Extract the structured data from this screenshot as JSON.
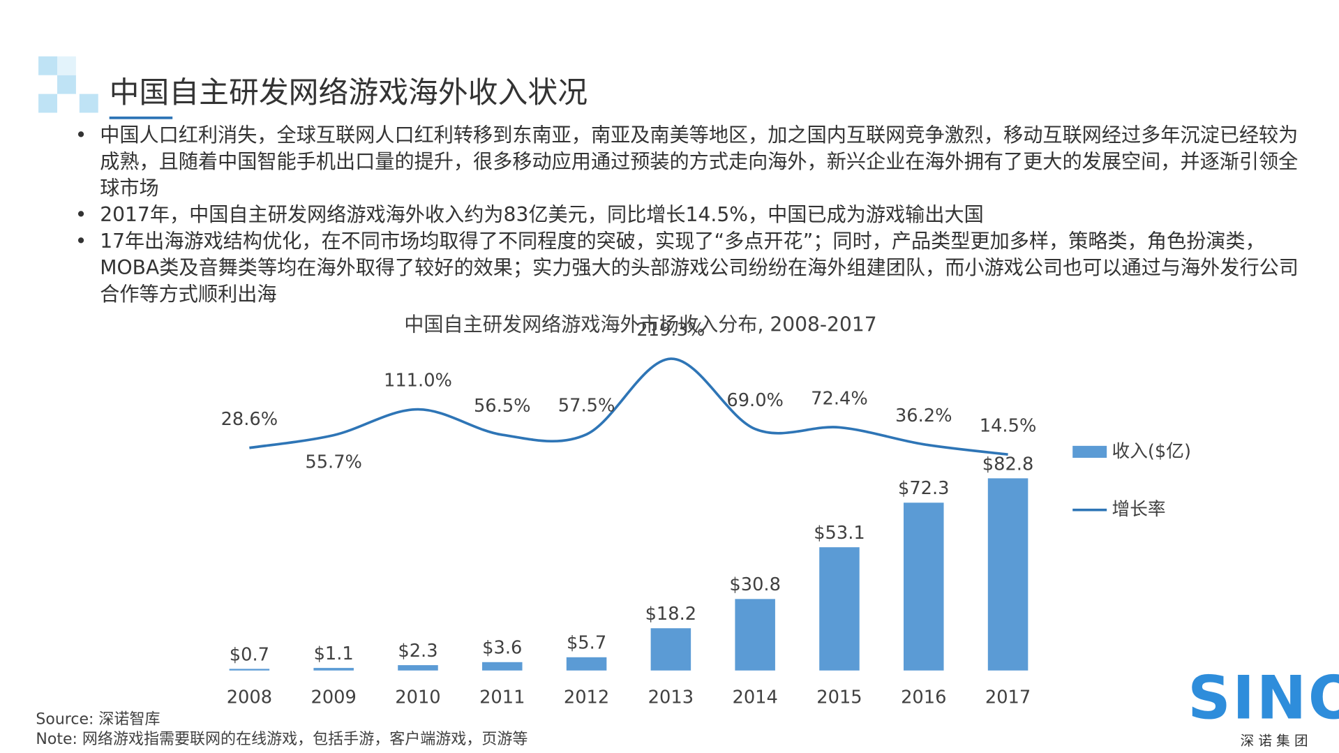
{
  "header": {
    "title": "中国自主研发网络游戏海外收入状况"
  },
  "bullets": [
    "中国人口红利消失，全球互联网人口红利转移到东南亚，南亚及南美等地区，加之国内互联网竞争激烈，移动互联网经过多年沉淀已经较为成熟，且随着中国智能手机出口量的提升，很多移动应用通过预装的方式走向海外，新兴企业在海外拥有了更大的发展空间，并逐渐引领全球市场",
    "2017年，中国自主研发网络游戏海外收入约为83亿美元，同比增长14.5%，中国已成为游戏输出大国",
    "17年出海游戏结构优化，在不同市场均取得了不同程度的突破，实现了“多点开花”；同时，产品类型更加多样，策略类，角色扮演类，MOBA类及音舞类等均在海外取得了较好的效果；实力强大的头部游戏公司纷纷在海外组建团队，而小游戏公司也可以通过与海外发行公司合作等方式顺利出海"
  ],
  "chart_data": {
    "type": "bar",
    "title": "中国自主研发网络游戏海外市场收入分布, 2008-2017",
    "categories": [
      "2008",
      "2009",
      "2010",
      "2011",
      "2012",
      "2013",
      "2014",
      "2015",
      "2016",
      "2017"
    ],
    "series": [
      {
        "name": "收入($亿)",
        "type": "bar",
        "color": "#5b9bd5",
        "values": [
          0.7,
          1.1,
          2.3,
          3.6,
          5.7,
          18.2,
          30.8,
          53.1,
          72.3,
          82.8
        ],
        "value_labels": [
          "$0.7",
          "$1.1",
          "$2.3",
          "$3.6",
          "$5.7",
          "$18.2",
          "$30.8",
          "$53.1",
          "$72.3",
          "$82.8"
        ]
      },
      {
        "name": "增长率",
        "type": "line",
        "color": "#2e75b6",
        "values": [
          28.6,
          55.7,
          111.0,
          56.5,
          57.5,
          219.3,
          69.0,
          72.4,
          36.2,
          14.5
        ],
        "value_labels": [
          "28.6%",
          "55.7%",
          "111.0%",
          "56.5%",
          "57.5%",
          "219.3%",
          "69.0%",
          "72.4%",
          "36.2%",
          "14.5%"
        ]
      }
    ],
    "legend": "right"
  },
  "footer": {
    "source": "Source: 深诺智库",
    "note": "Note: 网络游戏指需要联网的在线游戏，包括手游，客户端游戏，页游等"
  },
  "logo": {
    "text": "SINO",
    "subtitle": "深 诺 集 团"
  }
}
